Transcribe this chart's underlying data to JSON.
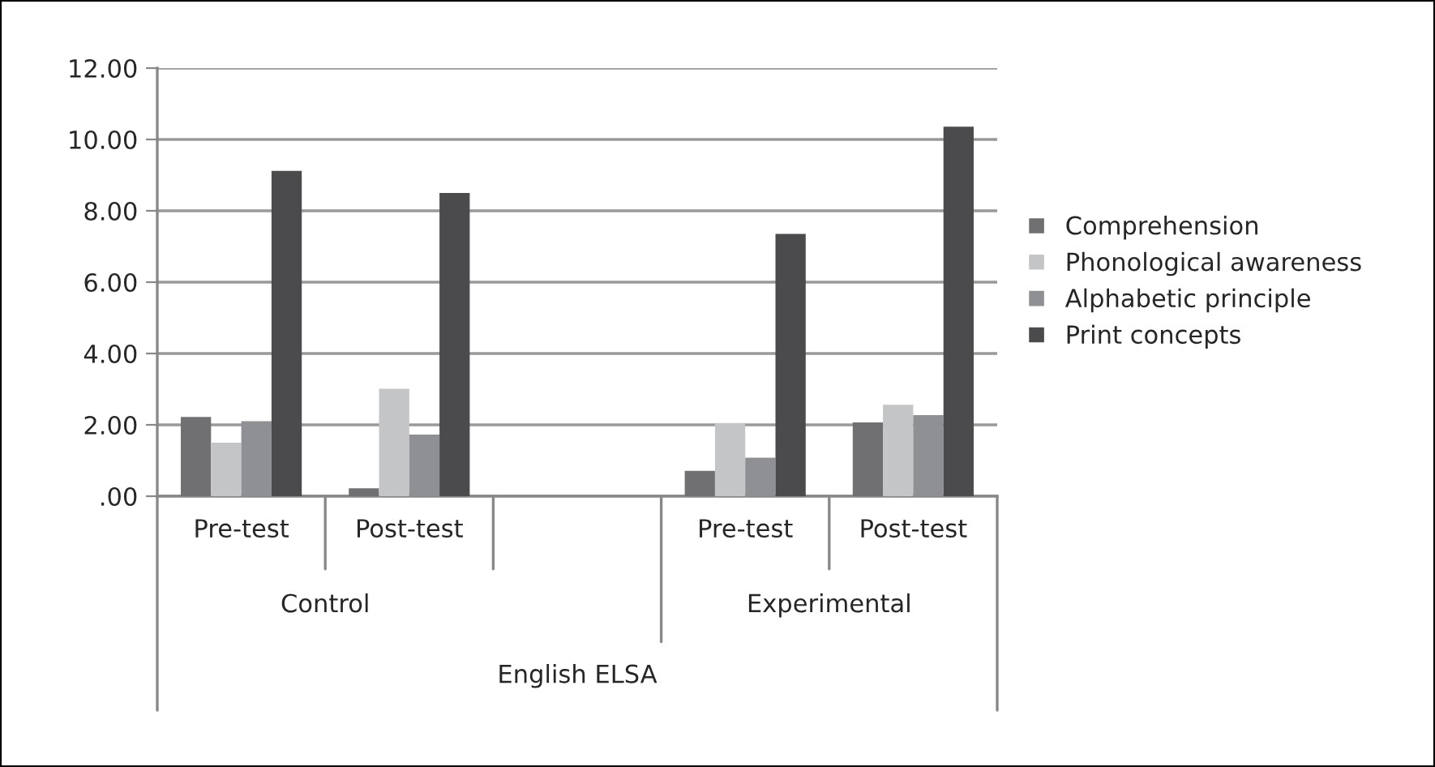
{
  "chart_data": {
    "type": "bar",
    "categories": [
      "Pre-test",
      "Post-test",
      null,
      "Pre-test",
      "Post-test"
    ],
    "series": [
      {
        "name": "Comprehension",
        "color": "#707073",
        "values": [
          2.22,
          0.22,
          null,
          0.71,
          2.07
        ]
      },
      {
        "name": "Phonological awareness",
        "color": "#c4c5c7",
        "values": [
          1.5,
          3.01,
          null,
          2.05,
          2.56
        ]
      },
      {
        "name": "Alphabetic principle",
        "color": "#8f9093",
        "values": [
          2.1,
          1.73,
          null,
          1.08,
          2.27
        ]
      },
      {
        "name": "Print concepts",
        "color": "#4b4b4d",
        "values": [
          9.12,
          8.5,
          null,
          7.35,
          10.36
        ]
      }
    ],
    "annotations": [
      "Control",
      "Experimental",
      "English ELSA"
    ],
    "ylim": [
      0,
      12
    ],
    "yticks": [
      {
        "value": 0,
        "label": ".00"
      },
      {
        "value": 2,
        "label": "2.00"
      },
      {
        "value": 4,
        "label": "4.00"
      },
      {
        "value": 6,
        "label": "6.00"
      },
      {
        "value": 8,
        "label": "8.00"
      },
      {
        "value": 10,
        "label": "10.00"
      },
      {
        "value": 12,
        "label": "12.00"
      }
    ],
    "grid": "y",
    "legend": "right"
  }
}
